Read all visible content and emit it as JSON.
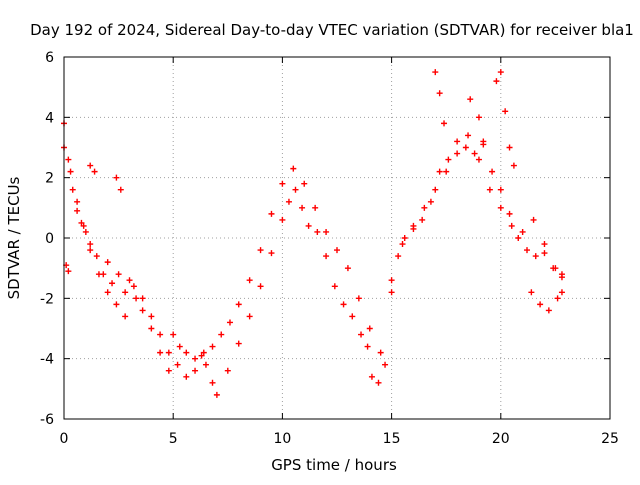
{
  "chart_data": {
    "type": "scatter",
    "title": "Day 192 of 2024, Sidereal Day-to-day VTEC variation (SDTVAR) for receiver bla1",
    "xlabel": "GPS time / hours",
    "ylabel": "SDTVAR / TECUs",
    "xlim": [
      0,
      25
    ],
    "ylim": [
      -6,
      6
    ],
    "x_ticks": [
      "0",
      "5",
      "10",
      "15",
      "20",
      "25"
    ],
    "y_ticks": [
      "-6",
      "-4",
      "-2",
      "0",
      "2",
      "4",
      "6"
    ],
    "grid": true,
    "marker": "+",
    "colors": {
      "series": "#ff0000",
      "grid": "#a0a0a0",
      "axis": "#000000"
    },
    "series": [
      {
        "name": "SDTVAR",
        "x": [
          0.0,
          0.2,
          0.4,
          0.6,
          0.8,
          1.0,
          1.2,
          1.5,
          1.8,
          2.0,
          2.2,
          2.5,
          2.8,
          3.0,
          3.3,
          3.6,
          4.0,
          4.4,
          4.8,
          5.0,
          5.3,
          5.6,
          6.0,
          6.3,
          6.5,
          6.8,
          7.0,
          7.5,
          8.0,
          8.5,
          9.0,
          9.5,
          10.0,
          10.3,
          10.6,
          10.9,
          11.2,
          11.6,
          12.0,
          12.4,
          12.8,
          13.2,
          13.6,
          13.9,
          14.1,
          14.4,
          14.7,
          15.0,
          15.3,
          15.6,
          16.0,
          16.4,
          16.8,
          17.2,
          17.6,
          18.0,
          18.4,
          18.8,
          19.2,
          19.6,
          20.0,
          20.4,
          20.8,
          21.2,
          21.6,
          22.0,
          22.4,
          22.8,
          0.0,
          0.3,
          0.6,
          0.9,
          1.2,
          1.6,
          2.0,
          2.4,
          2.8,
          3.2,
          3.6,
          4.0,
          4.4,
          4.8,
          5.2,
          5.6,
          6.0,
          6.4,
          6.8,
          7.2,
          7.6,
          8.0,
          8.5,
          9.0,
          9.5,
          10.0,
          10.5,
          11.0,
          11.5,
          12.0,
          12.5,
          13.0,
          13.5,
          14.0,
          14.5,
          15.0,
          15.5,
          16.0,
          16.5,
          17.0,
          17.5,
          18.0,
          18.5,
          19.0,
          19.5,
          20.0,
          20.5,
          21.0,
          21.5,
          22.0,
          22.5,
          22.8,
          17.0,
          17.2,
          17.4,
          18.6,
          19.0,
          19.2,
          19.8,
          20.0,
          20.2,
          20.4,
          20.6,
          21.4,
          21.8,
          22.2,
          22.6,
          22.8,
          1.2,
          1.4,
          2.4,
          2.6,
          0.1,
          0.2
        ],
        "y": [
          3.8,
          2.6,
          1.6,
          0.9,
          0.5,
          0.2,
          -0.2,
          -0.6,
          -1.2,
          -0.8,
          -1.5,
          -1.2,
          -1.8,
          -1.4,
          -2.0,
          -2.4,
          -3.0,
          -3.8,
          -4.4,
          -3.2,
          -3.6,
          -3.8,
          -4.0,
          -3.9,
          -4.2,
          -4.8,
          -5.2,
          -4.4,
          -3.5,
          -2.6,
          -1.6,
          -0.5,
          0.6,
          1.2,
          1.6,
          1.0,
          0.4,
          0.2,
          -0.6,
          -1.6,
          -2.2,
          -2.6,
          -3.2,
          -3.6,
          -4.6,
          -4.8,
          -4.2,
          -1.8,
          -0.6,
          0.0,
          0.4,
          0.6,
          1.2,
          2.2,
          2.6,
          3.2,
          3.0,
          2.8,
          3.1,
          2.2,
          1.6,
          0.8,
          0.0,
          -0.4,
          -0.6,
          -0.5,
          -1.0,
          -1.3,
          3.0,
          2.2,
          1.2,
          0.4,
          -0.4,
          -1.2,
          -1.8,
          -2.2,
          -2.6,
          -1.6,
          -2.0,
          -2.6,
          -3.2,
          -3.8,
          -4.2,
          -4.6,
          -4.4,
          -3.8,
          -3.6,
          -3.2,
          -2.8,
          -2.2,
          -1.4,
          -0.4,
          0.8,
          1.8,
          2.3,
          1.8,
          1.0,
          0.2,
          -0.4,
          -1.0,
          -2.0,
          -3.0,
          -3.8,
          -1.4,
          -0.2,
          0.3,
          1.0,
          1.6,
          2.2,
          2.8,
          3.4,
          2.6,
          1.6,
          1.0,
          0.4,
          0.2,
          0.6,
          -0.2,
          -1.0,
          -1.2,
          5.5,
          4.8,
          3.8,
          4.6,
          4.0,
          3.2,
          5.2,
          5.5,
          4.2,
          3.0,
          2.4,
          -1.8,
          -2.2,
          -2.4,
          -2.0,
          -1.8,
          2.4,
          2.2,
          2.0,
          1.6,
          -0.9,
          -1.1
        ]
      }
    ]
  }
}
